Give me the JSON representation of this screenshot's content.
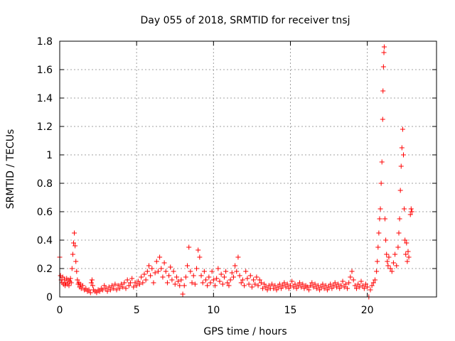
{
  "chart_data": {
    "type": "scatter",
    "title": "Day 055 of 2018, SRMTID for receiver tnsj",
    "xlabel": "GPS time / hours",
    "ylabel": "SRMTID / TECUs",
    "xlim": [
      0,
      24.5
    ],
    "ylim": [
      0,
      1.8
    ],
    "x_ticks": [
      0,
      5,
      10,
      15,
      20
    ],
    "y_ticks": [
      0,
      0.2,
      0.4,
      0.6,
      0.8,
      1,
      1.2,
      1.4,
      1.6,
      1.8
    ],
    "x_tick_labels": [
      "0",
      "5",
      "10",
      "15",
      "20"
    ],
    "y_tick_labels": [
      "0",
      "0.2",
      "0.4",
      "0.6",
      "0.8",
      "1",
      "1.2",
      "1.4",
      "1.6",
      "1.8"
    ],
    "grid": true,
    "marker": "plus",
    "marker_color": "#ff0000",
    "series": [
      {
        "name": "tnsj",
        "points": [
          [
            0.0,
            0.28
          ],
          [
            0.05,
            0.15
          ],
          [
            0.1,
            0.12
          ],
          [
            0.15,
            0.1
          ],
          [
            0.2,
            0.14
          ],
          [
            0.25,
            0.09
          ],
          [
            0.3,
            0.12
          ],
          [
            0.35,
            0.08
          ],
          [
            0.4,
            0.1
          ],
          [
            0.45,
            0.13
          ],
          [
            0.5,
            0.09
          ],
          [
            0.55,
            0.12
          ],
          [
            0.6,
            0.08
          ],
          [
            0.65,
            0.11
          ],
          [
            0.7,
            0.13
          ],
          [
            0.75,
            0.1
          ],
          [
            0.8,
            0.2
          ],
          [
            0.85,
            0.3
          ],
          [
            0.9,
            0.38
          ],
          [
            0.95,
            0.45
          ],
          [
            1.0,
            0.36
          ],
          [
            1.05,
            0.25
          ],
          [
            1.1,
            0.18
          ],
          [
            1.15,
            0.12
          ],
          [
            1.2,
            0.09
          ],
          [
            1.25,
            0.1
          ],
          [
            1.3,
            0.07
          ],
          [
            1.35,
            0.09
          ],
          [
            1.4,
            0.06
          ],
          [
            1.5,
            0.08
          ],
          [
            1.6,
            0.05
          ],
          [
            1.7,
            0.06
          ],
          [
            1.8,
            0.04
          ],
          [
            1.9,
            0.05
          ],
          [
            2.0,
            0.03
          ],
          [
            2.05,
            0.1
          ],
          [
            2.1,
            0.12
          ],
          [
            2.15,
            0.08
          ],
          [
            2.2,
            0.05
          ],
          [
            2.3,
            0.04
          ],
          [
            2.4,
            0.03
          ],
          [
            2.5,
            0.05
          ],
          [
            2.6,
            0.04
          ],
          [
            2.7,
            0.06
          ],
          [
            2.8,
            0.05
          ],
          [
            2.9,
            0.08
          ],
          [
            3.0,
            0.06
          ],
          [
            3.1,
            0.04
          ],
          [
            3.2,
            0.07
          ],
          [
            3.3,
            0.05
          ],
          [
            3.4,
            0.08
          ],
          [
            3.5,
            0.06
          ],
          [
            3.6,
            0.09
          ],
          [
            3.7,
            0.05
          ],
          [
            3.8,
            0.08
          ],
          [
            3.9,
            0.06
          ],
          [
            4.0,
            0.09
          ],
          [
            4.1,
            0.07
          ],
          [
            4.2,
            0.1
          ],
          [
            4.3,
            0.06
          ],
          [
            4.4,
            0.12
          ],
          [
            4.5,
            0.08
          ],
          [
            4.6,
            0.1
          ],
          [
            4.7,
            0.13
          ],
          [
            4.8,
            0.07
          ],
          [
            4.9,
            0.1
          ],
          [
            5.0,
            0.08
          ],
          [
            5.1,
            0.11
          ],
          [
            5.2,
            0.09
          ],
          [
            5.3,
            0.14
          ],
          [
            5.4,
            0.1
          ],
          [
            5.5,
            0.16
          ],
          [
            5.6,
            0.12
          ],
          [
            5.7,
            0.18
          ],
          [
            5.8,
            0.22
          ],
          [
            5.9,
            0.15
          ],
          [
            6.0,
            0.2
          ],
          [
            6.1,
            0.1
          ],
          [
            6.2,
            0.17
          ],
          [
            6.3,
            0.25
          ],
          [
            6.4,
            0.18
          ],
          [
            6.5,
            0.28
          ],
          [
            6.6,
            0.2
          ],
          [
            6.7,
            0.14
          ],
          [
            6.8,
            0.24
          ],
          [
            6.9,
            0.18
          ],
          [
            7.0,
            0.1
          ],
          [
            7.1,
            0.15
          ],
          [
            7.2,
            0.21
          ],
          [
            7.3,
            0.12
          ],
          [
            7.4,
            0.18
          ],
          [
            7.5,
            0.09
          ],
          [
            7.6,
            0.14
          ],
          [
            7.7,
            0.11
          ],
          [
            7.8,
            0.08
          ],
          [
            7.9,
            0.12
          ],
          [
            8.0,
            0.02
          ],
          [
            8.1,
            0.08
          ],
          [
            8.2,
            0.14
          ],
          [
            8.3,
            0.22
          ],
          [
            8.4,
            0.35
          ],
          [
            8.5,
            0.18
          ],
          [
            8.6,
            0.1
          ],
          [
            8.7,
            0.15
          ],
          [
            8.8,
            0.09
          ],
          [
            8.9,
            0.2
          ],
          [
            9.0,
            0.33
          ],
          [
            9.1,
            0.28
          ],
          [
            9.2,
            0.15
          ],
          [
            9.3,
            0.1
          ],
          [
            9.4,
            0.18
          ],
          [
            9.5,
            0.12
          ],
          [
            9.6,
            0.08
          ],
          [
            9.7,
            0.14
          ],
          [
            9.8,
            0.1
          ],
          [
            9.9,
            0.18
          ],
          [
            10.0,
            0.12
          ],
          [
            10.1,
            0.08
          ],
          [
            10.2,
            0.13
          ],
          [
            10.3,
            0.2
          ],
          [
            10.4,
            0.11
          ],
          [
            10.5,
            0.16
          ],
          [
            10.6,
            0.09
          ],
          [
            10.7,
            0.14
          ],
          [
            10.8,
            0.18
          ],
          [
            10.9,
            0.1
          ],
          [
            11.0,
            0.08
          ],
          [
            11.1,
            0.12
          ],
          [
            11.2,
            0.17
          ],
          [
            11.3,
            0.14
          ],
          [
            11.4,
            0.22
          ],
          [
            11.5,
            0.18
          ],
          [
            11.6,
            0.28
          ],
          [
            11.7,
            0.15
          ],
          [
            11.8,
            0.1
          ],
          [
            11.9,
            0.12
          ],
          [
            12.0,
            0.08
          ],
          [
            12.1,
            0.18
          ],
          [
            12.2,
            0.13
          ],
          [
            12.3,
            0.09
          ],
          [
            12.4,
            0.15
          ],
          [
            12.5,
            0.07
          ],
          [
            12.6,
            0.12
          ],
          [
            12.7,
            0.09
          ],
          [
            12.8,
            0.14
          ],
          [
            12.9,
            0.08
          ],
          [
            13.0,
            0.12
          ],
          [
            13.1,
            0.1
          ],
          [
            13.2,
            0.06
          ],
          [
            13.3,
            0.09
          ],
          [
            13.4,
            0.07
          ],
          [
            13.5,
            0.05
          ],
          [
            13.6,
            0.08
          ],
          [
            13.7,
            0.06
          ],
          [
            13.8,
            0.09
          ],
          [
            13.9,
            0.06
          ],
          [
            14.0,
            0.08
          ],
          [
            14.1,
            0.05
          ],
          [
            14.2,
            0.07
          ],
          [
            14.3,
            0.09
          ],
          [
            14.4,
            0.06
          ],
          [
            14.5,
            0.08
          ],
          [
            14.6,
            0.1
          ],
          [
            14.7,
            0.07
          ],
          [
            14.8,
            0.09
          ],
          [
            14.9,
            0.06
          ],
          [
            15.0,
            0.08
          ],
          [
            15.1,
            0.11
          ],
          [
            15.2,
            0.07
          ],
          [
            15.3,
            0.09
          ],
          [
            15.4,
            0.06
          ],
          [
            15.5,
            0.08
          ],
          [
            15.6,
            0.1
          ],
          [
            15.7,
            0.07
          ],
          [
            15.8,
            0.09
          ],
          [
            15.9,
            0.06
          ],
          [
            16.0,
            0.08
          ],
          [
            16.1,
            0.07
          ],
          [
            16.2,
            0.05
          ],
          [
            16.3,
            0.08
          ],
          [
            16.4,
            0.1
          ],
          [
            16.5,
            0.07
          ],
          [
            16.6,
            0.09
          ],
          [
            16.7,
            0.06
          ],
          [
            16.8,
            0.08
          ],
          [
            16.9,
            0.05
          ],
          [
            17.0,
            0.07
          ],
          [
            17.1,
            0.09
          ],
          [
            17.2,
            0.06
          ],
          [
            17.3,
            0.08
          ],
          [
            17.4,
            0.05
          ],
          [
            17.5,
            0.07
          ],
          [
            17.6,
            0.09
          ],
          [
            17.7,
            0.06
          ],
          [
            17.8,
            0.08
          ],
          [
            17.9,
            0.1
          ],
          [
            18.0,
            0.07
          ],
          [
            18.1,
            0.09
          ],
          [
            18.2,
            0.06
          ],
          [
            18.3,
            0.08
          ],
          [
            18.4,
            0.11
          ],
          [
            18.5,
            0.07
          ],
          [
            18.6,
            0.09
          ],
          [
            18.7,
            0.06
          ],
          [
            18.8,
            0.1
          ],
          [
            18.9,
            0.14
          ],
          [
            19.0,
            0.18
          ],
          [
            19.1,
            0.12
          ],
          [
            19.2,
            0.08
          ],
          [
            19.3,
            0.06
          ],
          [
            19.4,
            0.09
          ],
          [
            19.5,
            0.07
          ],
          [
            19.6,
            0.11
          ],
          [
            19.7,
            0.08
          ],
          [
            19.8,
            0.06
          ],
          [
            19.9,
            0.09
          ],
          [
            20.0,
            0.07
          ],
          [
            20.1,
            0.0
          ],
          [
            20.2,
            0.05
          ],
          [
            20.3,
            0.08
          ],
          [
            20.4,
            0.1
          ],
          [
            20.5,
            0.12
          ],
          [
            20.6,
            0.18
          ],
          [
            20.65,
            0.25
          ],
          [
            20.7,
            0.35
          ],
          [
            20.75,
            0.45
          ],
          [
            20.8,
            0.55
          ],
          [
            20.85,
            0.62
          ],
          [
            20.9,
            0.8
          ],
          [
            20.95,
            0.95
          ],
          [
            21.0,
            1.25
          ],
          [
            21.02,
            1.45
          ],
          [
            21.05,
            1.62
          ],
          [
            21.08,
            1.72
          ],
          [
            21.1,
            1.76
          ],
          [
            21.15,
            0.55
          ],
          [
            21.2,
            0.4
          ],
          [
            21.25,
            0.3
          ],
          [
            21.3,
            0.25
          ],
          [
            21.35,
            0.22
          ],
          [
            21.4,
            0.28
          ],
          [
            21.5,
            0.2
          ],
          [
            21.6,
            0.18
          ],
          [
            21.7,
            0.24
          ],
          [
            21.8,
            0.3
          ],
          [
            21.9,
            0.22
          ],
          [
            22.0,
            0.35
          ],
          [
            22.05,
            0.45
          ],
          [
            22.1,
            0.55
          ],
          [
            22.15,
            0.75
          ],
          [
            22.2,
            0.92
          ],
          [
            22.25,
            1.05
          ],
          [
            22.3,
            1.18
          ],
          [
            22.35,
            1.0
          ],
          [
            22.4,
            0.62
          ],
          [
            22.45,
            0.4
          ],
          [
            22.5,
            0.3
          ],
          [
            22.55,
            0.38
          ],
          [
            22.6,
            0.25
          ],
          [
            22.65,
            0.32
          ],
          [
            22.7,
            0.28
          ],
          [
            22.8,
            0.58
          ],
          [
            22.85,
            0.62
          ],
          [
            22.9,
            0.6
          ]
        ]
      }
    ]
  }
}
